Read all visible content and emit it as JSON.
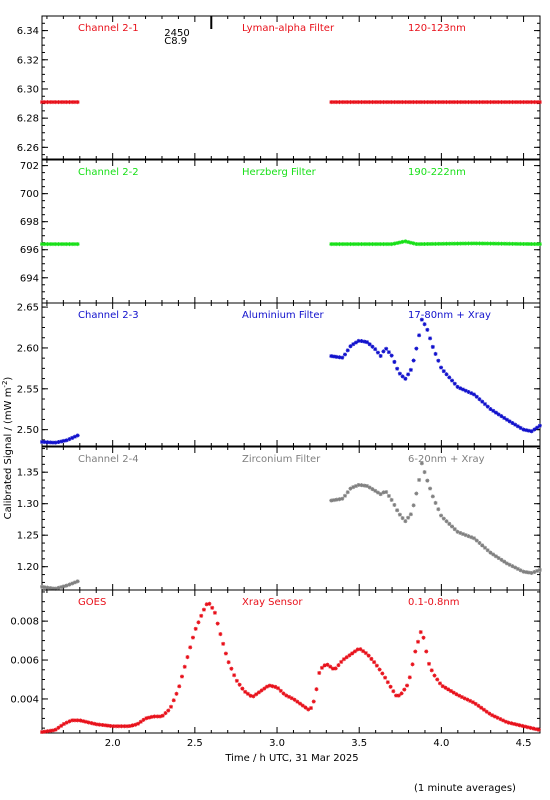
{
  "chart_data": {
    "type": "scatter",
    "xlabel": "Time / h UTC, 31 Mar 2025",
    "ylabel": "Calibrated Signal / (mW m",
    "ylabel_exp": "-2",
    "ylabel_close": ")",
    "footnote": "(1 minute averages)",
    "xlim": [
      1.57,
      4.6
    ],
    "xticks": [
      2.0,
      2.5,
      3.0,
      3.5,
      4.0,
      4.5
    ],
    "xtick_labels": [
      "2.0",
      "2.5",
      "3.0",
      "3.5",
      "4.0",
      "4.5"
    ],
    "colors": {
      "red": "#e8101a",
      "green": "#18e018",
      "blue": "#1010cc",
      "gray": "#808080"
    },
    "panels": [
      {
        "id": "ch21",
        "channel": "Channel 2-1",
        "filter": "Lyman-alpha Filter",
        "band": "120-123nm",
        "color": "#e8101a",
        "ylim": [
          6.252,
          6.35
        ],
        "yticks": [
          6.26,
          6.28,
          6.3,
          6.32,
          6.34
        ],
        "ytick_labels": [
          "6.26",
          "6.28",
          "6.30",
          "6.32",
          "6.34"
        ],
        "annotation": {
          "x": 2.6,
          "lines": [
            "2450",
            "C8.9"
          ]
        },
        "series": [
          {
            "x": [
              1.57,
              1.8
            ],
            "y": [
              6.291,
              6.291
            ]
          },
          {
            "x": [
              3.33,
              4.6
            ],
            "y": [
              6.291,
              6.291
            ]
          }
        ]
      },
      {
        "id": "ch22",
        "channel": "Channel 2-2",
        "filter": "Herzberg Filter",
        "band": "190-222nm",
        "color": "#18e018",
        "ylim": [
          692.2,
          702.4
        ],
        "yticks": [
          694,
          696,
          698,
          700,
          702
        ],
        "ytick_labels": [
          "694",
          "696",
          "698",
          "700",
          "702"
        ],
        "series": [
          {
            "x": [
              1.57,
              1.8
            ],
            "y": [
              696.4,
              696.4
            ]
          },
          {
            "x": [
              3.33,
              3.7,
              3.78,
              3.85,
              4.2,
              4.6
            ],
            "y": [
              696.4,
              696.4,
              696.6,
              696.4,
              696.45,
              696.4
            ]
          }
        ]
      },
      {
        "id": "ch23",
        "channel": "Channel 2-3",
        "filter": "Aluminium Filter",
        "band": "17-80nm + Xray",
        "color": "#1010cc",
        "ylim": [
          2.48,
          2.655
        ],
        "yticks": [
          2.5,
          2.55,
          2.6,
          2.65
        ],
        "ytick_labels": [
          "2.50",
          "2.55",
          "2.60",
          "2.65"
        ],
        "series": [
          {
            "x": [
              1.57,
              1.65,
              1.72,
              1.8
            ],
            "y": [
              2.485,
              2.484,
              2.487,
              2.494
            ]
          },
          {
            "x": [
              3.33,
              3.4,
              3.45,
              3.5,
              3.55,
              3.6,
              3.63,
              3.66,
              3.7,
              3.74,
              3.78,
              3.82,
              3.86,
              3.88,
              3.91,
              3.95,
              4.0,
              4.1,
              4.2,
              4.3,
              4.4,
              4.5,
              4.55,
              4.6
            ],
            "y": [
              2.59,
              2.588,
              2.603,
              2.609,
              2.607,
              2.598,
              2.59,
              2.6,
              2.59,
              2.57,
              2.562,
              2.575,
              2.61,
              2.635,
              2.625,
              2.6,
              2.575,
              2.552,
              2.543,
              2.525,
              2.512,
              2.5,
              2.498,
              2.505
            ]
          }
        ]
      },
      {
        "id": "ch24",
        "channel": "Channel 2-4",
        "filter": "Zirconium Filter",
        "band": "6-20nm + Xray",
        "color": "#808080",
        "ylim": [
          1.163,
          1.39
        ],
        "yticks": [
          1.2,
          1.25,
          1.3,
          1.35
        ],
        "ytick_labels": [
          "1.20",
          "1.25",
          "1.30",
          "1.35"
        ],
        "series": [
          {
            "x": [
              1.57,
              1.65,
              1.72,
              1.8
            ],
            "y": [
              1.168,
              1.165,
              1.17,
              1.178
            ]
          },
          {
            "x": [
              3.33,
              3.4,
              3.45,
              3.5,
              3.55,
              3.6,
              3.63,
              3.66,
              3.7,
              3.74,
              3.78,
              3.82,
              3.86,
              3.88,
              3.91,
              3.95,
              4.0,
              4.1,
              4.2,
              4.3,
              4.4,
              4.5,
              4.55,
              4.6
            ],
            "y": [
              1.305,
              1.308,
              1.325,
              1.33,
              1.328,
              1.32,
              1.315,
              1.32,
              1.305,
              1.285,
              1.272,
              1.285,
              1.33,
              1.365,
              1.34,
              1.31,
              1.28,
              1.255,
              1.245,
              1.222,
              1.205,
              1.192,
              1.19,
              1.195
            ]
          }
        ]
      },
      {
        "id": "goes",
        "channel": "GOES",
        "filter": "Xray Sensor",
        "band": "0.1-0.8nm",
        "color": "#e8101a",
        "ylim": [
          0.00225,
          0.0096
        ],
        "yticks": [
          0.004,
          0.006,
          0.008
        ],
        "ytick_labels": [
          "0.004",
          "0.006",
          "0.008"
        ],
        "series": [
          {
            "x": [
              1.57,
              1.65,
              1.7,
              1.75,
              1.8,
              1.9,
              2.0,
              2.1,
              2.15,
              2.2,
              2.25,
              2.3,
              2.35,
              2.4,
              2.45,
              2.5,
              2.55,
              2.58,
              2.62,
              2.65,
              2.7,
              2.75,
              2.8,
              2.85,
              2.9,
              2.95,
              3.0,
              3.05,
              3.1,
              3.15,
              3.2,
              3.23,
              3.26,
              3.3,
              3.35,
              3.4,
              3.45,
              3.5,
              3.55,
              3.6,
              3.65,
              3.7,
              3.73,
              3.76,
              3.8,
              3.84,
              3.88,
              3.9,
              3.92,
              3.95,
              4.0,
              4.1,
              4.2,
              4.3,
              4.4,
              4.5,
              4.55,
              4.6
            ],
            "y": [
              0.0023,
              0.0024,
              0.0027,
              0.0029,
              0.0029,
              0.0027,
              0.0026,
              0.0026,
              0.0027,
              0.003,
              0.0031,
              0.0031,
              0.0035,
              0.0045,
              0.006,
              0.0075,
              0.0085,
              0.009,
              0.0085,
              0.0075,
              0.006,
              0.005,
              0.0044,
              0.0041,
              0.0044,
              0.0047,
              0.0046,
              0.0042,
              0.004,
              0.0037,
              0.0034,
              0.004,
              0.0055,
              0.0058,
              0.0055,
              0.006,
              0.0063,
              0.0066,
              0.0063,
              0.0058,
              0.0052,
              0.0045,
              0.0041,
              0.0043,
              0.0048,
              0.0064,
              0.0076,
              0.0068,
              0.0059,
              0.0053,
              0.0047,
              0.0042,
              0.0038,
              0.0032,
              0.0028,
              0.0026,
              0.0025,
              0.0024
            ]
          }
        ]
      }
    ]
  }
}
